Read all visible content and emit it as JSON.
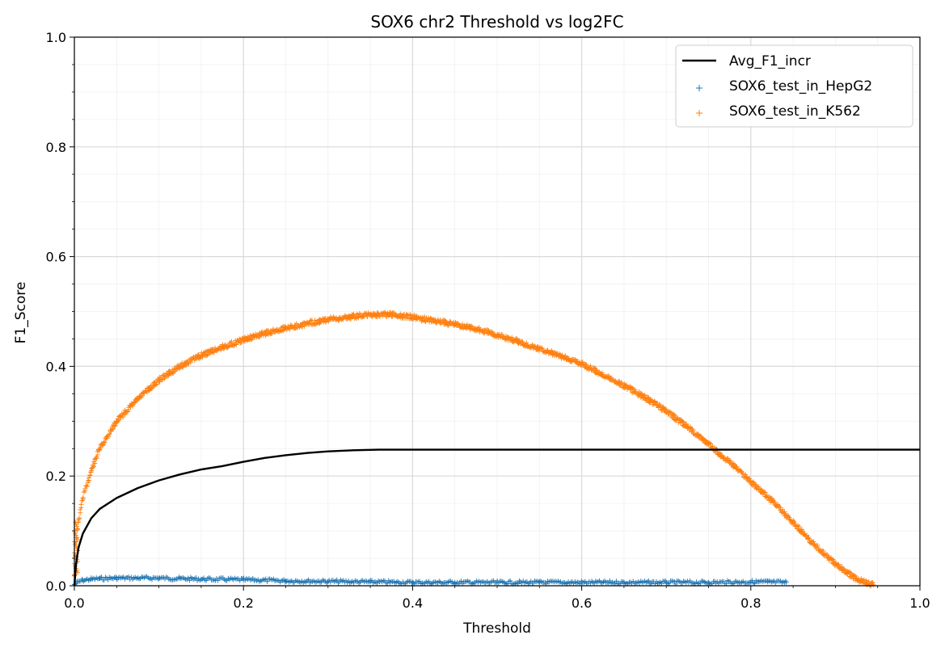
{
  "chart_data": {
    "type": "line",
    "title": "SOX6 chr2 Threshold vs log2FC",
    "xlabel": "Threshold",
    "ylabel": "F1_Score",
    "xlim": [
      0.0,
      1.0
    ],
    "ylim": [
      0.0,
      1.0
    ],
    "xticks": [
      "0.0",
      "0.2",
      "0.4",
      "0.6",
      "0.8",
      "1.0"
    ],
    "yticks": [
      "0.0",
      "0.2",
      "0.4",
      "0.6",
      "0.8",
      "1.0"
    ],
    "grid": true,
    "legend_position": "top-right",
    "colors": {
      "avg": "#000000",
      "hepg2": "#1f77b4",
      "k562": "#ff7f0e",
      "grid_major": "#d9d9d9",
      "grid_minor": "#f0f0f0"
    },
    "series": [
      {
        "name": "Avg_F1_incr",
        "style": "line",
        "x": [
          0.0,
          0.002,
          0.005,
          0.01,
          0.02,
          0.03,
          0.05,
          0.075,
          0.1,
          0.125,
          0.15,
          0.175,
          0.2,
          0.225,
          0.25,
          0.275,
          0.3,
          0.33,
          0.36,
          0.4,
          0.5,
          0.6,
          0.7,
          0.8,
          0.9,
          1.0
        ],
        "y": [
          0.0,
          0.04,
          0.07,
          0.095,
          0.123,
          0.14,
          0.16,
          0.178,
          0.192,
          0.203,
          0.212,
          0.218,
          0.226,
          0.233,
          0.238,
          0.242,
          0.245,
          0.247,
          0.248,
          0.248,
          0.248,
          0.248,
          0.248,
          0.248,
          0.248,
          0.248
        ]
      },
      {
        "name": "SOX6_test_in_HepG2",
        "style": "scatter",
        "x": [
          0.0,
          0.003,
          0.01,
          0.02,
          0.03,
          0.05,
          0.075,
          0.1,
          0.125,
          0.15,
          0.2,
          0.25,
          0.3,
          0.35,
          0.4,
          0.45,
          0.5,
          0.55,
          0.6,
          0.65,
          0.7,
          0.75,
          0.8,
          0.82,
          0.842
        ],
        "y": [
          0.002,
          0.006,
          0.01,
          0.012,
          0.013,
          0.014,
          0.014,
          0.014,
          0.013,
          0.012,
          0.011,
          0.009,
          0.008,
          0.007,
          0.006,
          0.006,
          0.006,
          0.006,
          0.006,
          0.006,
          0.006,
          0.006,
          0.007,
          0.007,
          0.006
        ]
      },
      {
        "name": "SOX6_test_in_K562",
        "style": "scatter",
        "x": [
          0.0,
          0.002,
          0.005,
          0.01,
          0.02,
          0.03,
          0.05,
          0.075,
          0.1,
          0.125,
          0.15,
          0.175,
          0.2,
          0.225,
          0.25,
          0.275,
          0.3,
          0.325,
          0.35,
          0.36,
          0.375,
          0.4,
          0.425,
          0.45,
          0.475,
          0.5,
          0.525,
          0.55,
          0.575,
          0.6,
          0.625,
          0.65,
          0.675,
          0.7,
          0.725,
          0.75,
          0.775,
          0.8,
          0.825,
          0.85,
          0.875,
          0.9,
          0.925,
          0.945
        ],
        "y": [
          0.02,
          0.08,
          0.12,
          0.16,
          0.21,
          0.25,
          0.3,
          0.34,
          0.375,
          0.4,
          0.42,
          0.435,
          0.448,
          0.46,
          0.47,
          0.478,
          0.485,
          0.49,
          0.494,
          0.495,
          0.494,
          0.49,
          0.483,
          0.477,
          0.468,
          0.457,
          0.445,
          0.432,
          0.418,
          0.405,
          0.385,
          0.365,
          0.343,
          0.318,
          0.29,
          0.258,
          0.225,
          0.19,
          0.155,
          0.115,
          0.075,
          0.04,
          0.012,
          0.002
        ]
      }
    ]
  }
}
